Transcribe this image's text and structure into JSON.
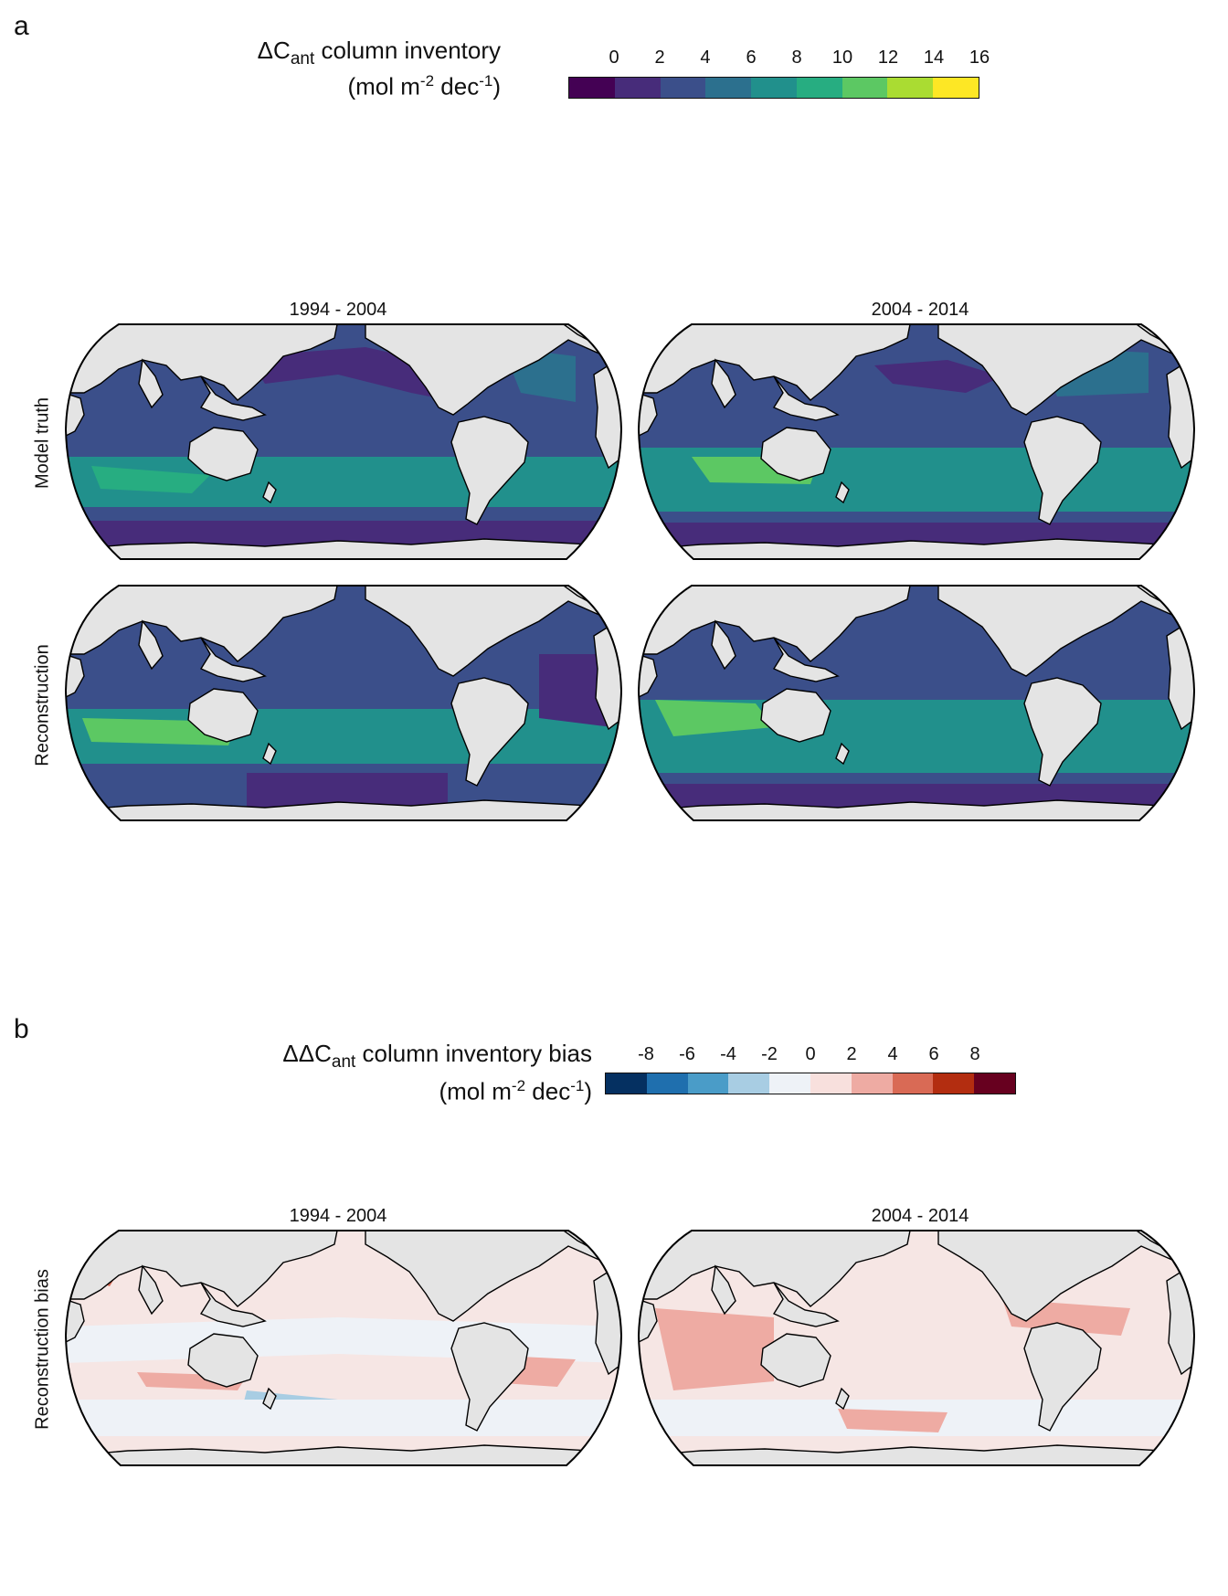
{
  "panel_a": {
    "letter": "a",
    "colorbar": {
      "title_main": "ΔC",
      "title_sub": "ant",
      "title_rest": " column inventory",
      "units_pre": "(mol m",
      "units_sup1": "-2",
      "units_mid": " dec",
      "units_sup2": "-1",
      "units_post": ")",
      "ticks": [
        "0",
        "2",
        "4",
        "6",
        "8",
        "10",
        "12",
        "14",
        "16"
      ],
      "colors": [
        "#440154",
        "#472c7a",
        "#3b4f8a",
        "#2c708e",
        "#21908c",
        "#27ad81",
        "#5cc863",
        "#aadc32",
        "#fde725"
      ]
    },
    "columns": [
      "1994 - 2004",
      "2004 - 2014"
    ],
    "rows": [
      "Model truth",
      "Reconstruction"
    ]
  },
  "panel_b": {
    "letter": "b",
    "colorbar": {
      "title_main": "ΔΔC",
      "title_sub": "ant",
      "title_rest": " column inventory bias",
      "units_pre": "(mol m",
      "units_sup1": "-2",
      "units_mid": " dec",
      "units_sup2": "-1",
      "units_post": ")",
      "ticks": [
        "-8",
        "-6",
        "-4",
        "-2",
        "0",
        "2",
        "4",
        "6",
        "8"
      ],
      "colors": [
        "#053061",
        "#1f6fae",
        "#4a9cc8",
        "#a8cde3",
        "#eef2f7",
        "#f8e0dd",
        "#eeaba3",
        "#d96a55",
        "#b32d10",
        "#67001f"
      ]
    },
    "columns": [
      "1994 - 2004",
      "2004 - 2014"
    ],
    "rows": [
      "Reconstruction bias"
    ]
  },
  "map_colors": {
    "land": "#e4e4e4",
    "outline": "#000000",
    "default_ocean": "#3b4f8a",
    "bias_neutral": "#f6e6e4"
  }
}
